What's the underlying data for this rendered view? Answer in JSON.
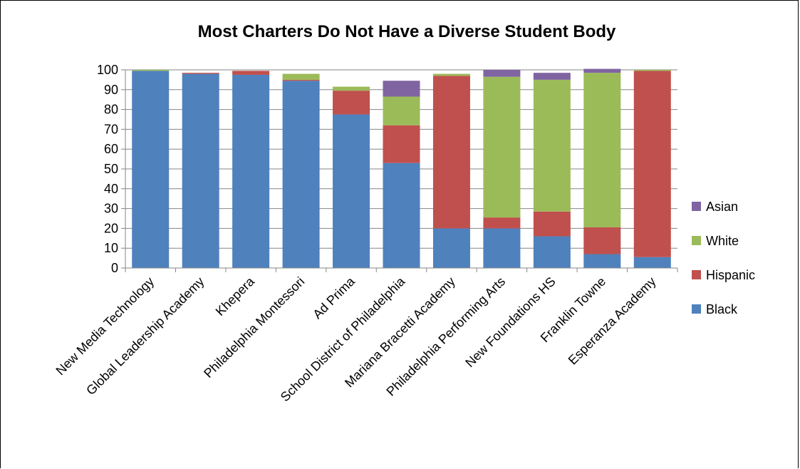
{
  "chart_data": {
    "type": "bar",
    "stacked": true,
    "title": "Most Charters Do Not Have a Diverse Student Body",
    "xlabel": "",
    "ylabel": "",
    "ylim": [
      0,
      100
    ],
    "yticks": [
      0,
      10,
      20,
      30,
      40,
      50,
      60,
      70,
      80,
      90,
      100
    ],
    "grid": true,
    "legend_position": "right",
    "categories": [
      "New Media Technology",
      "Global Leadership Academy",
      "Khepera",
      "Philadelphia Montessori",
      "Ad Prima",
      "School District of Philadelphia",
      "Mariana Bracetti Academy",
      "Philadelphia Performing Arts",
      "New Foundations HS",
      "Franklin Towne",
      "Esperanza Academy"
    ],
    "series": [
      {
        "name": "Black",
        "color": "#4f81bd",
        "values": [
          99.5,
          98,
          97.5,
          94.5,
          77.5,
          53,
          20,
          20,
          16,
          7,
          5.5
        ]
      },
      {
        "name": "Hispanic",
        "color": "#c0504d",
        "values": [
          0,
          0.5,
          2,
          0.5,
          12,
          19,
          77,
          5.5,
          12.5,
          13.5,
          94
        ]
      },
      {
        "name": "White",
        "color": "#9bbb59",
        "values": [
          0.5,
          0,
          0,
          3,
          2,
          14.5,
          1,
          71,
          66.5,
          78,
          0.5
        ]
      },
      {
        "name": "Asian",
        "color": "#8064a2",
        "values": [
          0,
          0,
          0,
          0,
          0,
          8,
          0,
          3.5,
          3.5,
          2,
          0
        ]
      }
    ]
  }
}
